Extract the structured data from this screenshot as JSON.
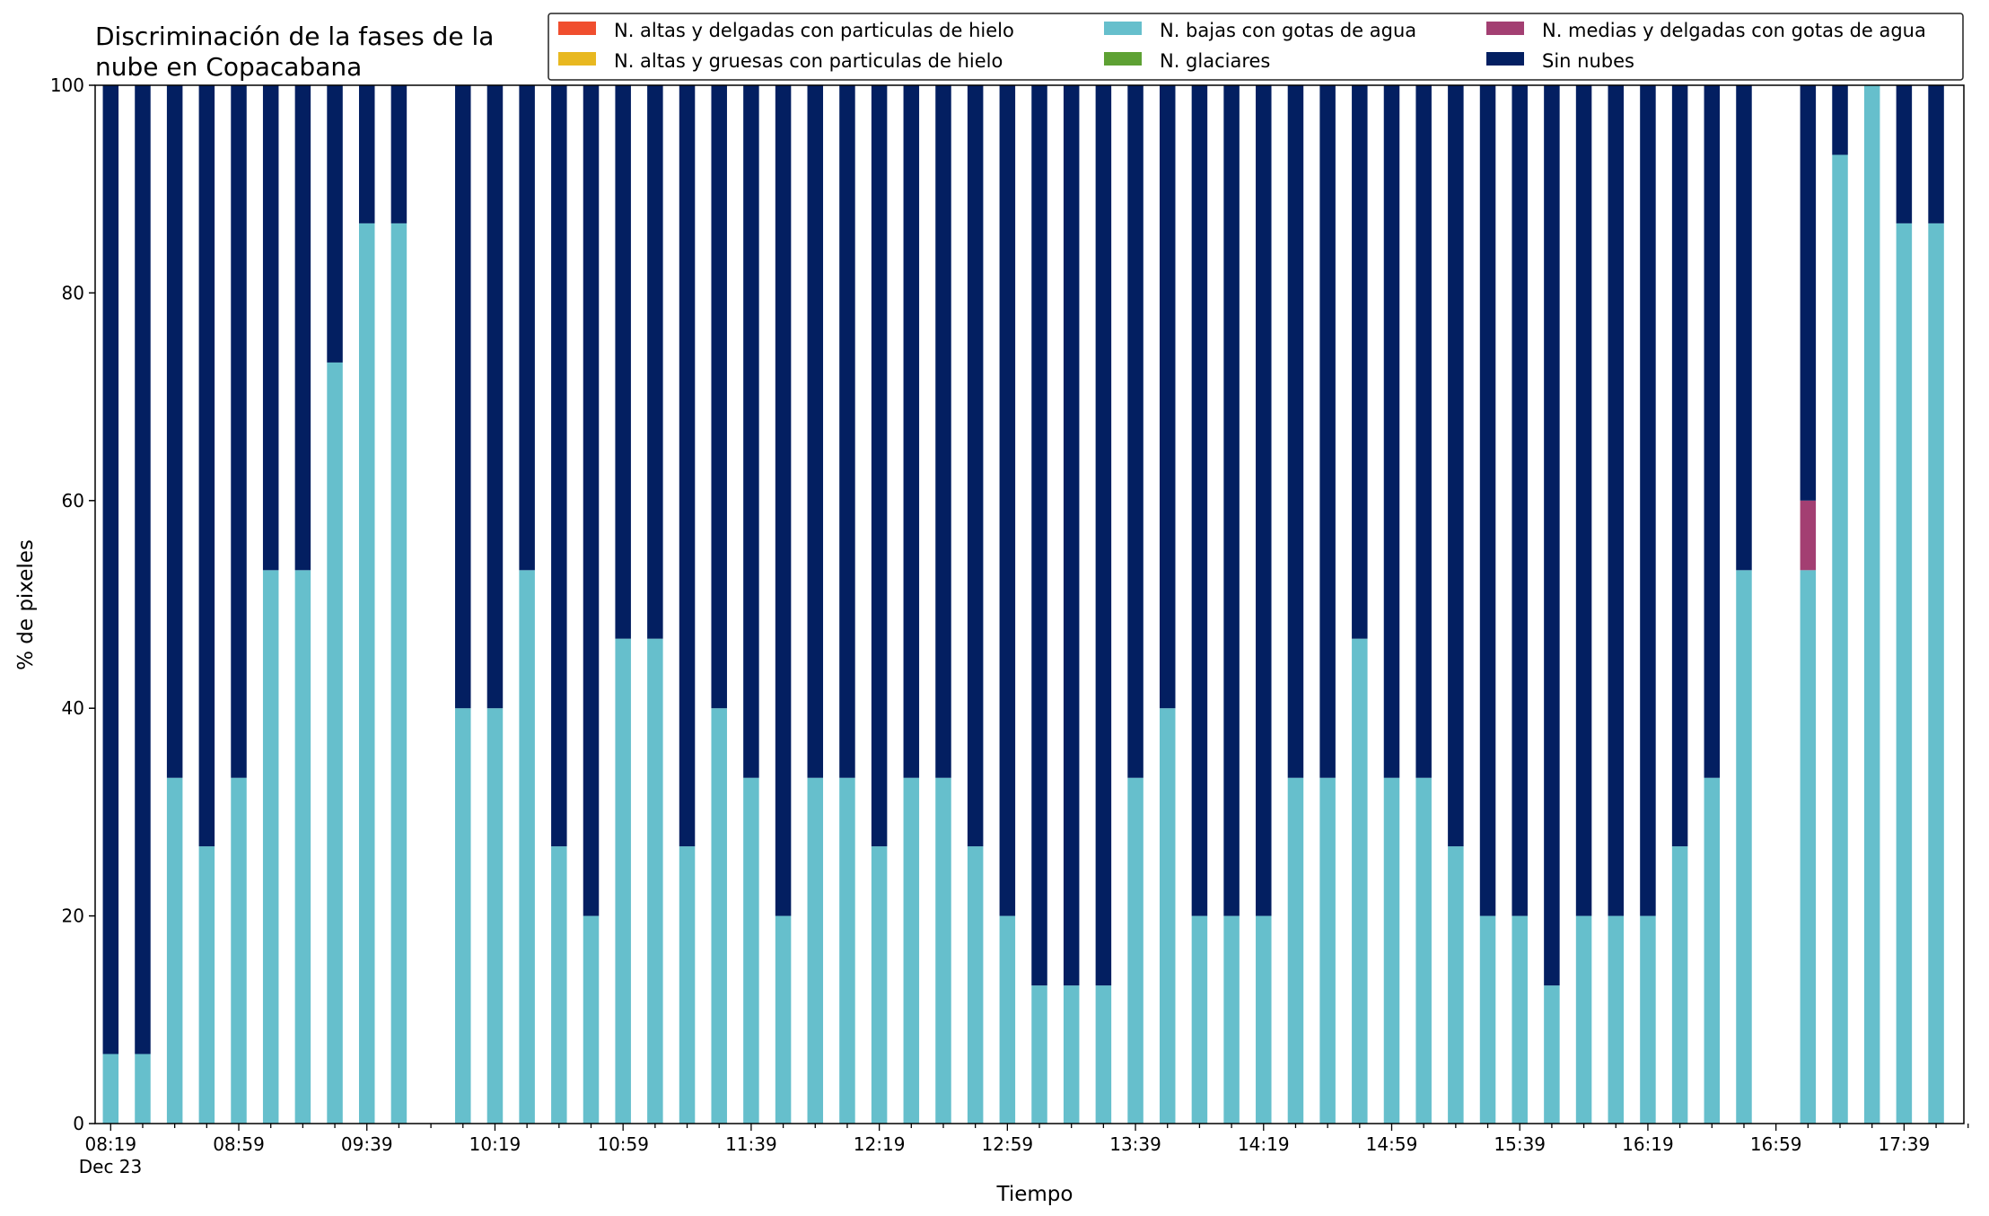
{
  "chart_data": {
    "type": "bar",
    "stacked": true,
    "title_lines": [
      "Discriminación de la fases de la",
      "nube en Copacabana"
    ],
    "xlabel": "Tiempo",
    "ylabel": "% de pixeles",
    "ylim": [
      0,
      100
    ],
    "yticks": [
      0,
      20,
      40,
      60,
      80,
      100
    ],
    "x_tick_labels": [
      "08:19",
      "08:59",
      "09:39",
      "10:19",
      "10:59",
      "11:39",
      "12:19",
      "12:59",
      "13:39",
      "14:19",
      "14:59",
      "15:39",
      "16:19",
      "16:59",
      "17:39"
    ],
    "x_date_label": "Dec 23",
    "time_start": "08:19",
    "time_step_minutes": 10,
    "grid": false,
    "legend_placement": "top-right",
    "legend": [
      {
        "name": "N. altas y delgadas con particulas de hielo",
        "color": "#f04e2e"
      },
      {
        "name": "N. altas y gruesas con particulas de hielo",
        "color": "#e8b820"
      },
      {
        "name": "N. bajas con gotas de agua",
        "color": "#66bfcc"
      },
      {
        "name": "N. glaciares",
        "color": "#5ea133"
      },
      {
        "name": "N. medias y delgadas con gotas de agua",
        "color": "#a33f72"
      },
      {
        "name": "Sin nubes",
        "color": "#031f61"
      }
    ],
    "stack_order": [
      "N. bajas con gotas de agua",
      "N. medias y delgadas con gotas de agua",
      "Sin nubes"
    ],
    "categories": [
      "08:19",
      "08:29",
      "08:39",
      "08:49",
      "08:59",
      "09:09",
      "09:19",
      "09:29",
      "09:39",
      "09:49",
      "09:59",
      "10:09",
      "10:19",
      "10:29",
      "10:39",
      "10:49",
      "10:59",
      "11:09",
      "11:19",
      "11:29",
      "11:39",
      "11:49",
      "11:59",
      "12:09",
      "12:19",
      "12:29",
      "12:39",
      "12:49",
      "12:59",
      "13:09",
      "13:19",
      "13:29",
      "13:39",
      "13:49",
      "13:59",
      "14:09",
      "14:19",
      "14:29",
      "14:39",
      "14:49",
      "14:59",
      "15:09",
      "15:19",
      "15:29",
      "15:39",
      "15:49",
      "15:59",
      "16:09",
      "16:19",
      "16:29",
      "16:39",
      "16:49",
      "16:59",
      "17:09",
      "17:19",
      "17:29",
      "17:39",
      "17:49"
    ],
    "series": [
      {
        "name": "N. bajas con gotas de agua",
        "color": "#66bfcc",
        "values": [
          6.7,
          6.7,
          33.3,
          26.7,
          33.3,
          53.3,
          53.3,
          73.3,
          86.7,
          86.7,
          null,
          40,
          40,
          53.3,
          26.7,
          20,
          46.7,
          46.7,
          26.7,
          40,
          33.3,
          20,
          33.3,
          33.3,
          26.7,
          33.3,
          33.3,
          26.7,
          20,
          13.3,
          13.3,
          13.3,
          33.3,
          40,
          20,
          20,
          20,
          33.3,
          33.3,
          46.7,
          33.3,
          33.3,
          26.7,
          20,
          20,
          13.3,
          20,
          20,
          20,
          26.7,
          33.3,
          53.3,
          null,
          53.3,
          93.3,
          100,
          86.7,
          86.7
        ]
      },
      {
        "name": "N. medias y delgadas con gotas de agua",
        "color": "#a33f72",
        "values": [
          0,
          0,
          0,
          0,
          0,
          0,
          0,
          0,
          0,
          0,
          null,
          0,
          0,
          0,
          0,
          0,
          0,
          0,
          0,
          0,
          0,
          0,
          0,
          0,
          0,
          0,
          0,
          0,
          0,
          0,
          0,
          0,
          0,
          0,
          0,
          0,
          0,
          0,
          0,
          0,
          0,
          0,
          0,
          0,
          0,
          0,
          0,
          0,
          0,
          0,
          0,
          0,
          null,
          6.7,
          0,
          0,
          0,
          0
        ]
      },
      {
        "name": "Sin nubes",
        "color": "#031f61",
        "values": [
          93.3,
          93.3,
          66.7,
          73.3,
          66.7,
          46.7,
          46.7,
          26.7,
          13.3,
          13.3,
          null,
          60,
          60,
          46.7,
          73.3,
          80,
          53.3,
          53.3,
          73.3,
          60,
          66.7,
          80,
          66.7,
          66.7,
          73.3,
          66.7,
          66.7,
          73.3,
          80,
          86.7,
          86.7,
          86.7,
          66.7,
          60,
          80,
          80,
          80,
          66.7,
          66.7,
          53.3,
          66.7,
          66.7,
          73.3,
          80,
          80,
          86.7,
          80,
          80,
          80,
          73.3,
          66.7,
          46.7,
          null,
          40,
          6.7,
          0,
          13.3,
          13.3
        ]
      }
    ]
  }
}
